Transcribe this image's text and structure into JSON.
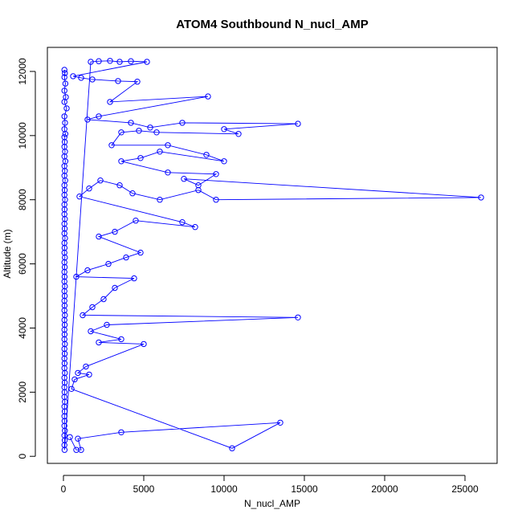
{
  "chart_data": {
    "type": "line",
    "title": "ATOM4 Southbound N_nucl_AMP",
    "xlabel": "N_nucl_AMP",
    "ylabel": "Altitude (m)",
    "xlim": [
      -1000,
      27000
    ],
    "ylim": [
      -220,
      12750
    ],
    "x_ticks": [
      0,
      5000,
      10000,
      15000,
      20000,
      25000
    ],
    "y_ticks": [
      0,
      2000,
      4000,
      6000,
      8000,
      10000,
      12000
    ],
    "x_tick_labels": [
      "0",
      "5000",
      "10000",
      "15000",
      "20000",
      "25000"
    ],
    "y_tick_labels": [
      "0",
      "2000",
      "4000",
      "6000",
      "8000",
      "10000",
      "12000"
    ],
    "grid": false,
    "legend": "none",
    "marker": "open-circle",
    "series": [
      {
        "color": "#0000ff",
        "points": [
          [
            60,
            12050
          ],
          [
            90,
            11950
          ],
          [
            60,
            11820
          ],
          [
            120,
            11620
          ],
          [
            60,
            11400
          ],
          [
            150,
            11200
          ],
          [
            60,
            11050
          ],
          [
            200,
            10850
          ],
          [
            60,
            10600
          ],
          [
            100,
            10400
          ],
          [
            60,
            10200
          ],
          [
            120,
            10050
          ],
          [
            60,
            9950
          ],
          [
            80,
            9800
          ],
          [
            60,
            9650
          ],
          [
            100,
            9500
          ],
          [
            60,
            9350
          ],
          [
            120,
            9200
          ],
          [
            60,
            9050
          ],
          [
            90,
            8900
          ],
          [
            60,
            8750
          ],
          [
            110,
            8600
          ],
          [
            60,
            8450
          ],
          [
            80,
            8300
          ],
          [
            60,
            8150
          ],
          [
            100,
            8000
          ],
          [
            60,
            7850
          ],
          [
            70,
            7700
          ],
          [
            60,
            7550
          ],
          [
            90,
            7400
          ],
          [
            60,
            7250
          ],
          [
            80,
            7100
          ],
          [
            60,
            6950
          ],
          [
            100,
            6800
          ],
          [
            60,
            6650
          ],
          [
            70,
            6500
          ],
          [
            60,
            6350
          ],
          [
            90,
            6200
          ],
          [
            60,
            6050
          ],
          [
            80,
            5900
          ],
          [
            60,
            5750
          ],
          [
            70,
            5600
          ],
          [
            60,
            5450
          ],
          [
            90,
            5300
          ],
          [
            60,
            5150
          ],
          [
            80,
            5000
          ],
          [
            60,
            4850
          ],
          [
            70,
            4700
          ],
          [
            60,
            4550
          ],
          [
            90,
            4400
          ],
          [
            60,
            4250
          ],
          [
            80,
            4100
          ],
          [
            60,
            3950
          ],
          [
            70,
            3800
          ],
          [
            60,
            3650
          ],
          [
            90,
            3500
          ],
          [
            60,
            3350
          ],
          [
            80,
            3200
          ],
          [
            60,
            3050
          ],
          [
            70,
            2900
          ],
          [
            60,
            2750
          ],
          [
            90,
            2600
          ],
          [
            60,
            2450
          ],
          [
            80,
            2300
          ],
          [
            60,
            2150
          ],
          [
            70,
            2000
          ],
          [
            60,
            1850
          ],
          [
            90,
            1700
          ],
          [
            60,
            1550
          ],
          [
            80,
            1400
          ],
          [
            60,
            1250
          ],
          [
            70,
            1100
          ],
          [
            60,
            950
          ],
          [
            90,
            800
          ],
          [
            60,
            650
          ],
          [
            80,
            500
          ],
          [
            60,
            350
          ],
          [
            70,
            200
          ],
          [
            1700,
            12300
          ],
          [
            2200,
            12320
          ],
          [
            2900,
            12330
          ],
          [
            3500,
            12300
          ],
          [
            4200,
            12320
          ],
          [
            5200,
            12300
          ],
          [
            600,
            11850
          ],
          [
            1100,
            11800
          ],
          [
            1800,
            11750
          ],
          [
            3400,
            11700
          ],
          [
            4600,
            11680
          ],
          [
            2900,
            11050
          ],
          [
            9000,
            11220
          ],
          [
            2200,
            10600
          ],
          [
            1500,
            10500
          ],
          [
            4200,
            10400
          ],
          [
            5400,
            10250
          ],
          [
            7400,
            10400
          ],
          [
            14600,
            10370
          ],
          [
            10000,
            10200
          ],
          [
            10900,
            10050
          ],
          [
            5800,
            10100
          ],
          [
            4700,
            10150
          ],
          [
            3600,
            10100
          ],
          [
            3000,
            9700
          ],
          [
            6500,
            9700
          ],
          [
            8900,
            9400
          ],
          [
            10000,
            9200
          ],
          [
            6000,
            9500
          ],
          [
            4800,
            9300
          ],
          [
            3600,
            9200
          ],
          [
            6500,
            8850
          ],
          [
            9500,
            8800
          ],
          [
            8400,
            8450
          ],
          [
            7500,
            8650
          ],
          [
            26000,
            8070
          ],
          [
            9500,
            8000
          ],
          [
            8400,
            8300
          ],
          [
            6000,
            8000
          ],
          [
            4300,
            8200
          ],
          [
            3500,
            8450
          ],
          [
            2300,
            8600
          ],
          [
            1600,
            8350
          ],
          [
            1000,
            8100
          ],
          [
            7400,
            7300
          ],
          [
            8200,
            7150
          ],
          [
            4500,
            7350
          ],
          [
            3200,
            7000
          ],
          [
            2200,
            6850
          ],
          [
            4800,
            6350
          ],
          [
            3900,
            6200
          ],
          [
            2800,
            6000
          ],
          [
            1500,
            5800
          ],
          [
            800,
            5600
          ],
          [
            4400,
            5550
          ],
          [
            3200,
            5250
          ],
          [
            2500,
            4900
          ],
          [
            1800,
            4650
          ],
          [
            1200,
            4400
          ],
          [
            14600,
            4330
          ],
          [
            2700,
            4100
          ],
          [
            1700,
            3900
          ],
          [
            3600,
            3650
          ],
          [
            2200,
            3550
          ],
          [
            5000,
            3500
          ],
          [
            1400,
            2800
          ],
          [
            900,
            2600
          ],
          [
            1600,
            2550
          ],
          [
            700,
            2400
          ],
          [
            500,
            2100
          ],
          [
            10500,
            250
          ],
          [
            13500,
            1050
          ],
          [
            3600,
            750
          ],
          [
            900,
            550
          ],
          [
            1100,
            200
          ],
          [
            800,
            200
          ],
          [
            400,
            600
          ]
        ]
      }
    ]
  }
}
